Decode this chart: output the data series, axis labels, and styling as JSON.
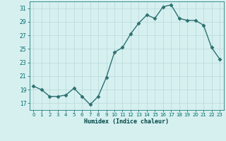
{
  "x": [
    0,
    1,
    2,
    3,
    4,
    5,
    6,
    7,
    8,
    9,
    10,
    11,
    12,
    13,
    14,
    15,
    16,
    17,
    18,
    19,
    20,
    21,
    22,
    23
  ],
  "y": [
    19.5,
    19.0,
    18.0,
    18.0,
    18.2,
    19.2,
    18.0,
    16.8,
    18.0,
    20.8,
    24.5,
    25.2,
    27.2,
    28.8,
    30.0,
    29.5,
    31.2,
    31.5,
    29.5,
    29.2,
    29.2,
    28.5,
    25.2,
    23.5
  ],
  "line_color": "#2d7070",
  "marker": "D",
  "marker_size": 2.5,
  "bg_color": "#d6f0f0",
  "grid_color": "#b8d8d8",
  "xlabel": "Humidex (Indice chaleur)",
  "ylim": [
    16,
    32
  ],
  "xlim": [
    -0.5,
    23.5
  ],
  "yticks": [
    17,
    19,
    21,
    23,
    25,
    27,
    29,
    31
  ],
  "xticks": [
    0,
    1,
    2,
    3,
    4,
    5,
    6,
    7,
    8,
    9,
    10,
    11,
    12,
    13,
    14,
    15,
    16,
    17,
    18,
    19,
    20,
    21,
    22,
    23
  ],
  "tick_color": "#006666",
  "xlabel_color": "#004444"
}
